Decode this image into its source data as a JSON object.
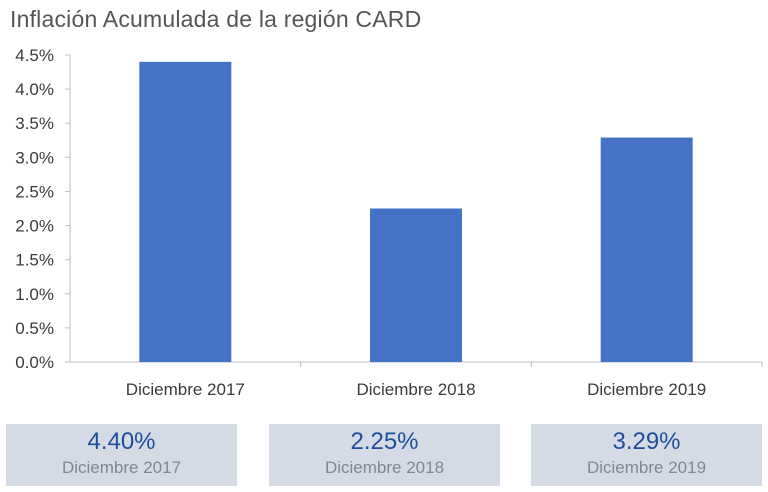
{
  "chart_data": {
    "type": "bar",
    "title": "Inflación Acumulada de la región CARD",
    "categories": [
      "Diciembre 2017",
      "Diciembre 2018",
      "Diciembre 2019"
    ],
    "values": [
      4.4,
      2.25,
      3.29
    ],
    "ylim": [
      0,
      4.5
    ],
    "yticks": [
      "0.0%",
      "0.5%",
      "1.0%",
      "1.5%",
      "2.0%",
      "2.5%",
      "3.0%",
      "3.5%",
      "4.0%",
      "4.5%"
    ],
    "ytick_values": [
      0,
      0.5,
      1.0,
      1.5,
      2.0,
      2.5,
      3.0,
      3.5,
      4.0,
      4.5
    ],
    "grid": false,
    "bar_color": "#4472c4",
    "axis_color": "#bfbfbf"
  },
  "summary_cards": [
    {
      "value": "4.40%",
      "label": "Diciembre 2017"
    },
    {
      "value": "2.25%",
      "label": "Diciembre 2018"
    },
    {
      "value": "3.29%",
      "label": "Diciembre 2019"
    }
  ]
}
